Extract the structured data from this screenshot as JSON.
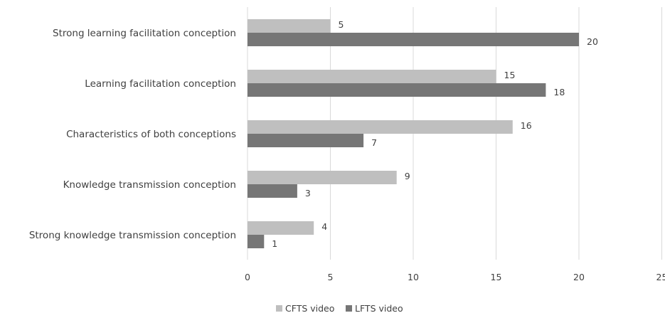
{
  "chart_data": {
    "type": "bar",
    "orientation": "horizontal",
    "categories": [
      "Strong learning facilitation conception",
      "Learning facilitation conception",
      "Characteristics of both conceptions",
      "Knowledge transmission conception",
      "Strong knowledge transmission conception"
    ],
    "series": [
      {
        "name": "CFTS video",
        "color": "#bfbfbf",
        "values": [
          5,
          15,
          16,
          9,
          4
        ]
      },
      {
        "name": "LFTS video",
        "color": "#767676",
        "values": [
          20,
          18,
          7,
          3,
          1
        ]
      }
    ],
    "xlim": [
      0,
      25
    ],
    "xticks": [
      0,
      5,
      10,
      15,
      20,
      25
    ],
    "grid": true,
    "legend_position": "bottom",
    "gridline_color": "#d9d9d9",
    "text_color": "#404040"
  }
}
